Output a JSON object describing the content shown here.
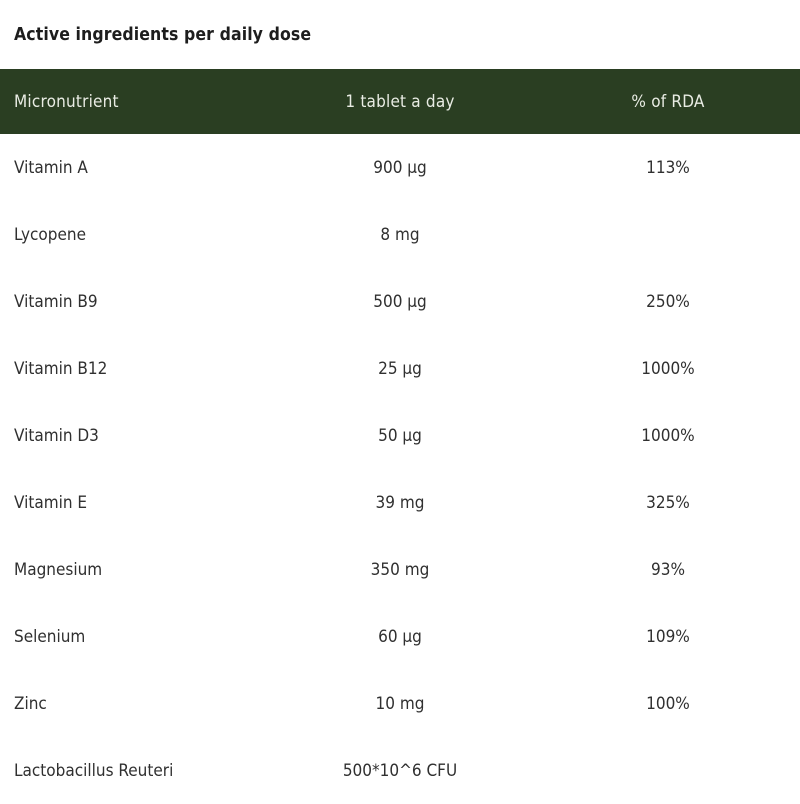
{
  "title": "Active ingredients per daily dose",
  "table": {
    "columns": [
      {
        "label": "Micronutrient",
        "align": "left"
      },
      {
        "label": "1 tablet a day",
        "align": "center"
      },
      {
        "label": "% of RDA",
        "align": "center"
      }
    ],
    "rows": [
      {
        "name": "Vitamin A",
        "dose": "900 µg",
        "rda": "113%"
      },
      {
        "name": "Lycopene",
        "dose": "8 mg",
        "rda": ""
      },
      {
        "name": "Vitamin B9",
        "dose": "500 µg",
        "rda": "250%"
      },
      {
        "name": "Vitamin B12",
        "dose": "25 µg",
        "rda": "1000%"
      },
      {
        "name": "Vitamin D3",
        "dose": "50 µg",
        "rda": "1000%"
      },
      {
        "name": "Vitamin E",
        "dose": "39 mg",
        "rda": "325%"
      },
      {
        "name": "Magnesium",
        "dose": "350 mg",
        "rda": "93%"
      },
      {
        "name": "Selenium",
        "dose": "60 µg",
        "rda": "109%"
      },
      {
        "name": "Zinc",
        "dose": "10 mg",
        "rda": "100%"
      },
      {
        "name": "Lactobacillus Reuteri",
        "dose": "500*10^6 CFU",
        "rda": ""
      }
    ]
  },
  "colors": {
    "header_bg": "#2a3e22",
    "header_text": "#e9ece4",
    "body_text": "#303030",
    "title_text": "#1d1d1d",
    "background": "#ffffff"
  }
}
